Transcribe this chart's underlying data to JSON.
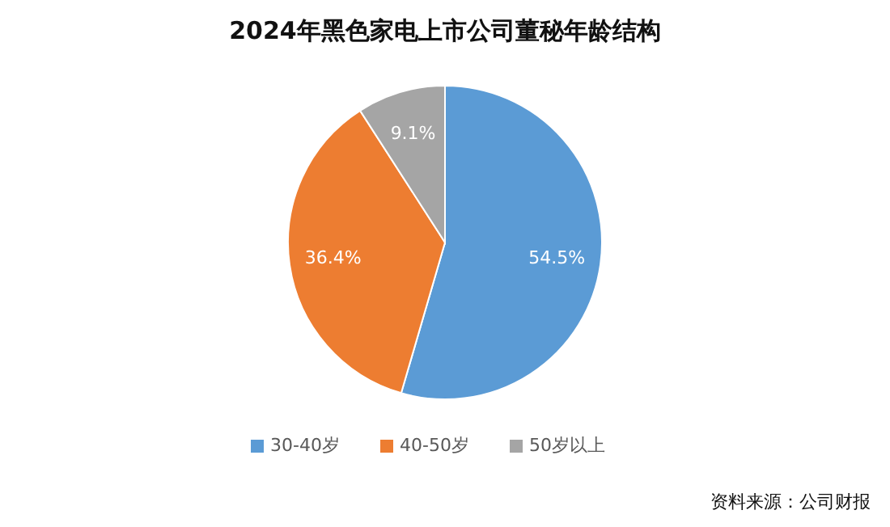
{
  "chart_data": {
    "type": "pie",
    "title": "2024年黑色家电上市公司董秘年龄结构",
    "categories": [
      "30-40岁",
      "40-50岁",
      "50岁以上"
    ],
    "values": [
      54.5,
      36.4,
      9.1
    ],
    "value_labels": [
      "54.5%",
      "36.4%",
      "9.1%"
    ],
    "colors": [
      "#5b9bd5",
      "#ed7d31",
      "#a5a5a5"
    ],
    "legend": "bottom",
    "annotations": [
      "资料来源：公司财报"
    ]
  }
}
